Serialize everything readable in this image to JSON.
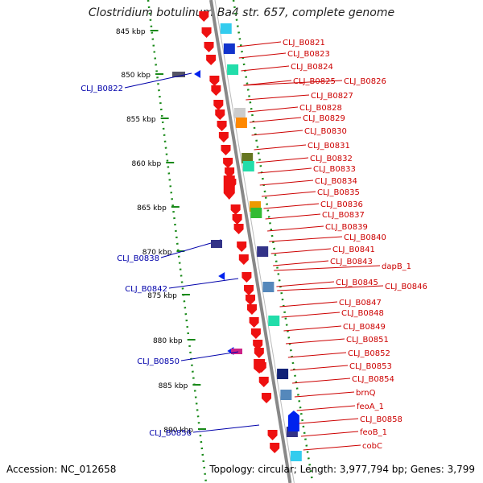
{
  "header": {
    "title": "Clostridium botulinum Ba4 str. 657, complete genome"
  },
  "footer": {
    "accession": "Accession: NC_012658",
    "summary": "Topology: circular; Length: 3,977,794 bp; Genes: 3,799"
  },
  "colors": {
    "forward_label": "#cc0000",
    "reverse_label": "#0000aa",
    "backbone": "#888888",
    "ruler": "#1a8a1a"
  },
  "ruler_labels": [
    "845 kbp",
    "850 kbp",
    "855 kbp",
    "860 kbp",
    "865 kbp",
    "870 kbp",
    "875 kbp",
    "880 kbp",
    "885 kbp",
    "890 kbp"
  ],
  "right_labels": [
    "CLJ_B0821",
    "CLJ_B0823",
    "CLJ_B0824",
    "CLJ_B0825",
    "CLJ_B0826",
    "CLJ_B0827",
    "CLJ_B0828",
    "CLJ_B0829",
    "CLJ_B0830",
    "CLJ_B0831",
    "CLJ_B0832",
    "CLJ_B0833",
    "CLJ_B0834",
    "CLJ_B0835",
    "CLJ_B0836",
    "CLJ_B0837",
    "CLJ_B0839",
    "CLJ_B0840",
    "CLJ_B0841",
    "CLJ_B0843",
    "dapB_1",
    "CLJ_B0845",
    "CLJ_B0846",
    "CLJ_B0847",
    "CLJ_B0848",
    "CLJ_B0849",
    "CLJ_B0851",
    "CLJ_B0852",
    "CLJ_B0853",
    "CLJ_B0854",
    "brnQ",
    "feoA_1",
    "CLJ_B0858",
    "feoB_1",
    "cobC"
  ],
  "left_labels": [
    "CLJ_B0822",
    "CLJ_B0838",
    "CLJ_B0842",
    "CLJ_B0850",
    "CLJ_B0856"
  ]
}
